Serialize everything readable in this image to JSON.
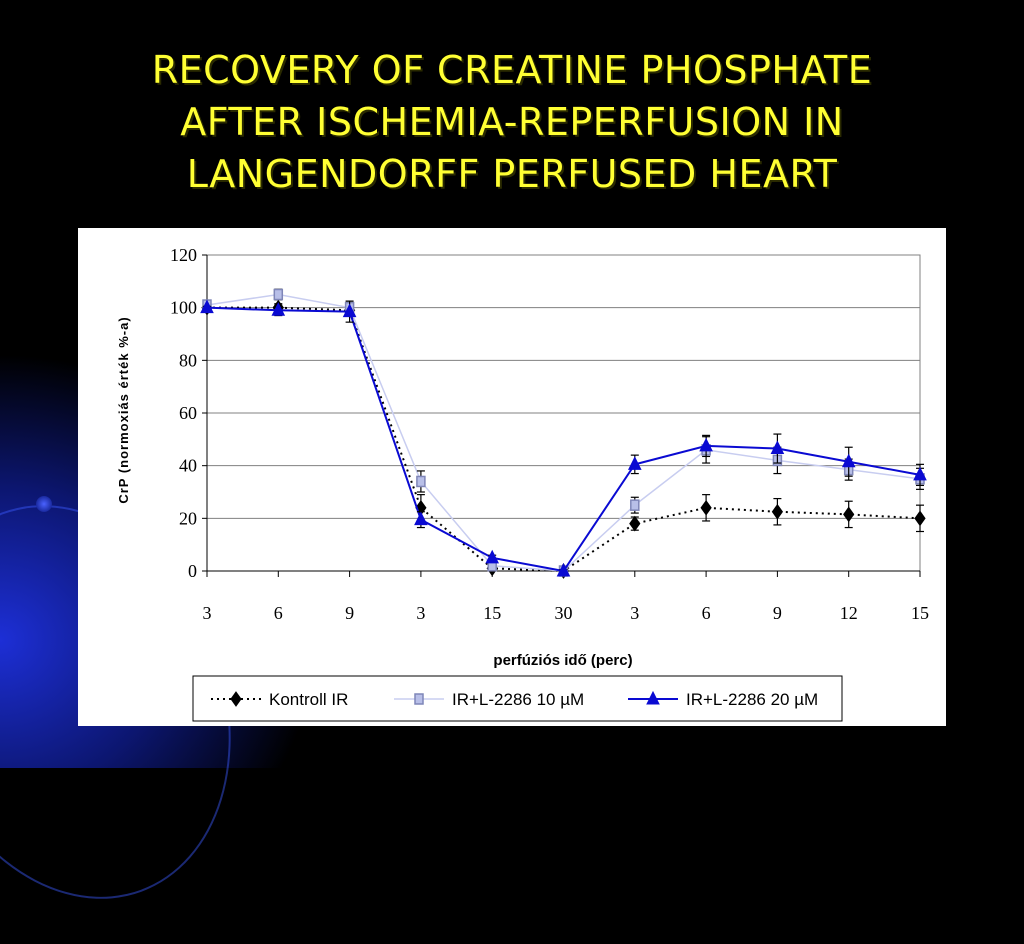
{
  "slide": {
    "title": "RECOVERY OF CREATINE PHOSPHATE\nAFTER ISCHEMIA-REPERFUSION IN\nLANGENDORFF PERFUSED HEART"
  },
  "colors": {
    "title": "#ffff33",
    "kontroll": "#000000",
    "l2286_10": "#c8cdf0",
    "l2286_20": "#0a0ad2"
  },
  "chart_data": {
    "type": "line",
    "categories": [
      "3",
      "6",
      "9",
      "3",
      "15",
      "30",
      "3",
      "6",
      "9",
      "12",
      "15"
    ],
    "ylim": [
      0,
      120
    ],
    "yticks": [
      0,
      20,
      40,
      60,
      80,
      100,
      120
    ],
    "ylabel": "CrP (normoxiás érték %-a)",
    "xlabel": "perfúziós idő (perc)",
    "grid": true,
    "legend_position": "bottom",
    "series": [
      {
        "name": "Kontroll IR",
        "marker": "diamond",
        "line_style": "dotted",
        "values": [
          100,
          100,
          99,
          24,
          1,
          0,
          18,
          24,
          22.5,
          21.5,
          20
        ],
        "errors": [
          0,
          1.5,
          2,
          5,
          1,
          0.5,
          2.5,
          5,
          5,
          5,
          5
        ]
      },
      {
        "name": "IR+L-2286 10 µM",
        "marker": "square",
        "line_style": "solid",
        "values": [
          101,
          105,
          100,
          34,
          2,
          0,
          25,
          46,
          42,
          38.5,
          35
        ],
        "errors": [
          1,
          2,
          2,
          4,
          1,
          0.5,
          3,
          5,
          5,
          4,
          4
        ]
      },
      {
        "name": "IR+L-2286 20 µM",
        "marker": "triangle",
        "line_style": "solid",
        "values": [
          100,
          99,
          98.5,
          19.5,
          5,
          0,
          40.5,
          47.5,
          46.5,
          41.5,
          36.5
        ],
        "errors": [
          0.5,
          2,
          4,
          3,
          1,
          0.5,
          3.5,
          4,
          5.5,
          5.5,
          4
        ]
      }
    ]
  }
}
